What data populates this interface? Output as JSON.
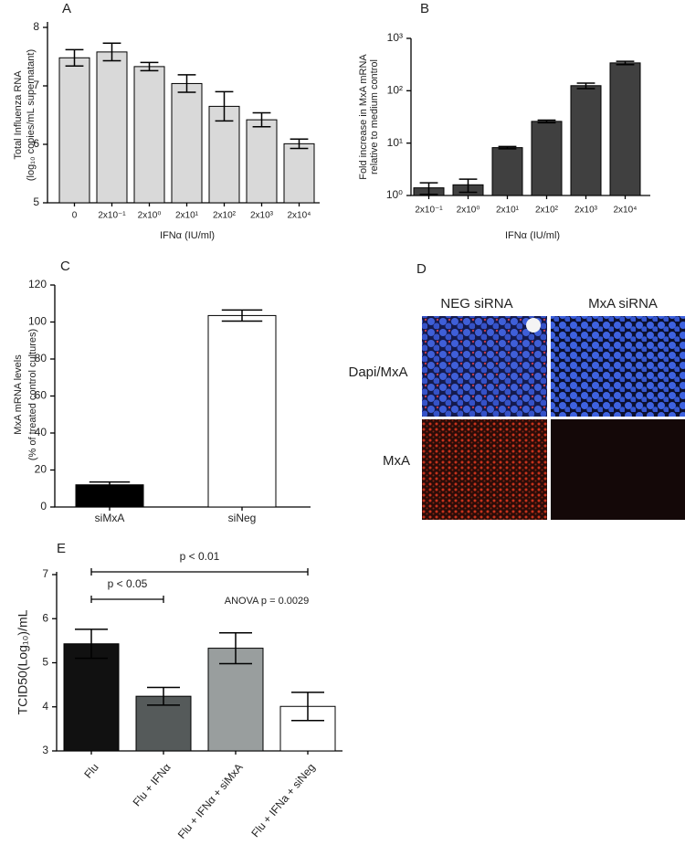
{
  "chart_data": [
    {
      "type": "bar",
      "title": "A",
      "ylabel": [
        "Total Influenza RNA",
        "(log₁₀ copies/mL supernatant)"
      ],
      "xlabel": "IFNα (IU/ml)",
      "categories": [
        "0",
        "2x10⁻¹",
        "2x10⁰",
        "2x10¹",
        "2x10²",
        "2x10³",
        "2x10⁴"
      ],
      "values": [
        7.48,
        7.58,
        7.33,
        7.04,
        6.65,
        6.42,
        6.01
      ],
      "errors": [
        0.14,
        0.15,
        0.07,
        0.15,
        0.25,
        0.12,
        0.08
      ],
      "color": "#d9d9d9",
      "ylim": [
        5,
        8
      ],
      "yticks": [
        5,
        6,
        7,
        8
      ]
    },
    {
      "type": "bar",
      "title": "B",
      "ylabel": [
        "Fold increase in MxA mRNA",
        "relative to medium control"
      ],
      "xlabel": "IFNα (IU/ml)",
      "categories": [
        "2x10⁻¹",
        "2x10⁰",
        "2x10¹",
        "2x10²",
        "2x10³",
        "2x10⁴"
      ],
      "values": [
        1.4,
        1.6,
        8.2,
        26,
        125,
        340
      ],
      "errors": [
        0.35,
        0.45,
        0.4,
        1.5,
        15,
        25
      ],
      "color": "#404040",
      "log_scale": true,
      "ylim": [
        1,
        1000
      ],
      "yticks": [
        {
          "value": 1,
          "label": "10⁰"
        },
        {
          "value": 10,
          "label": "10¹"
        },
        {
          "value": 100,
          "label": "10²"
        },
        {
          "value": 1000,
          "label": "10³"
        }
      ]
    },
    {
      "type": "bar",
      "title": "C",
      "ylabel": [
        "MxA mRNA levels",
        "(% of treated control  cultures)"
      ],
      "categories": [
        "siMxA",
        "siNeg"
      ],
      "values": [
        12,
        103.5
      ],
      "errors": [
        1.5,
        3
      ],
      "colors": [
        "#000000",
        "#ffffff"
      ],
      "ylim": [
        0,
        120
      ],
      "yticks": [
        0,
        20,
        40,
        60,
        80,
        100,
        120
      ]
    },
    {
      "type": "bar",
      "title": "E",
      "ylabel": [
        "TCID50(Log₁₀)/mL"
      ],
      "categories": [
        "Flu",
        "Flu + IFNα",
        "Flu + IFNα + siMxA",
        "Flu + IFNa + siNeg"
      ],
      "values": [
        5.43,
        4.24,
        5.33,
        4.01
      ],
      "errors": [
        0.33,
        0.2,
        0.35,
        0.32
      ],
      "colors": [
        "#111111",
        "#555a5a",
        "#999e9e",
        "#ffffff"
      ],
      "ylim": [
        3,
        7
      ],
      "yticks": [
        3,
        4,
        5,
        6,
        7
      ],
      "comparisons": [
        {
          "from": 0,
          "to": 3,
          "label": "p < 0.01"
        },
        {
          "from": 0,
          "to": 1,
          "label": "p < 0.05"
        }
      ],
      "annotation": "ANOVA p = 0.0029"
    }
  ],
  "image_panel": {
    "title": "D",
    "columns": [
      "NEG siRNA",
      "MxA siRNA"
    ],
    "rows": [
      "Dapi/MxA",
      "MxA"
    ]
  }
}
